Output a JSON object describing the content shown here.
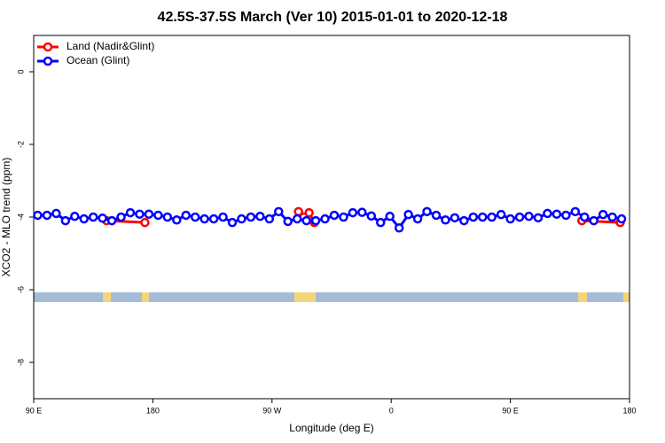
{
  "chart_data": {
    "type": "line",
    "title": "42.5S-37.5S March (Ver 10)   2015-01-01 to 2020-12-18",
    "x_label": "Longitude (deg E)",
    "y_label": "XCO2 - MLO trend (ppm)",
    "xlim": [
      90,
      540
    ],
    "xticks": [
      {
        "value": 90,
        "label": "90 E"
      },
      {
        "value": 180,
        "label": "180"
      },
      {
        "value": 270,
        "label": "90 W"
      },
      {
        "value": 360,
        "label": "0"
      },
      {
        "value": 450,
        "label": "90 E"
      },
      {
        "value": 540,
        "label": "180"
      }
    ],
    "ylim": [
      -9,
      1
    ],
    "yticks": [
      0,
      -2,
      -4,
      -6,
      -8
    ],
    "legend": "top-left",
    "series": [
      {
        "name": "Land (Nadir&Glint)",
        "color": "#ff0000",
        "x": [
          145,
          174,
          230,
          290,
          294,
          298,
          302,
          400,
          504,
          533
        ],
        "values": [
          -4.1,
          -4.15,
          null,
          -3.85,
          -4.0,
          -3.88,
          -4.15,
          null,
          -4.1,
          -4.15
        ]
      },
      {
        "name": "Ocean (Glint)",
        "color": "#0000ff",
        "x": [
          93,
          100,
          107,
          114,
          121,
          128,
          135,
          142,
          149,
          156,
          163,
          170,
          177,
          184,
          191,
          198,
          205,
          212,
          219,
          226,
          233,
          240,
          247,
          254,
          261,
          268,
          275,
          282,
          289,
          296,
          303,
          310,
          317,
          324,
          331,
          338,
          345,
          352,
          359,
          366,
          373,
          380,
          387,
          394,
          401,
          408,
          415,
          422,
          429,
          436,
          443,
          450,
          457,
          464,
          471,
          478,
          485,
          492,
          499,
          506,
          513,
          520,
          527,
          534
        ],
        "values": [
          -3.95,
          -3.95,
          -3.9,
          -4.1,
          -3.98,
          -4.05,
          -4.0,
          -4.03,
          -4.1,
          -4.0,
          -3.88,
          -3.92,
          -3.92,
          -3.95,
          -4.0,
          -4.08,
          -3.95,
          -4.0,
          -4.05,
          -4.05,
          -4.0,
          -4.15,
          -4.05,
          -4.0,
          -3.98,
          -4.05,
          -3.85,
          -4.12,
          -4.05,
          -4.1,
          -4.1,
          -4.05,
          -3.95,
          -4.0,
          -3.88,
          -3.87,
          -3.97,
          -4.15,
          -3.98,
          -4.3,
          -3.93,
          -4.05,
          -3.85,
          -3.95,
          -4.08,
          -4.02,
          -4.1,
          -4.0,
          -4.0,
          -4.0,
          -3.93,
          -4.05,
          -4.0,
          -3.98,
          -4.02,
          -3.9,
          -3.92,
          -3.95,
          -3.85,
          -4.0,
          -4.1,
          -3.93,
          -4.0,
          -4.05
        ]
      }
    ]
  }
}
